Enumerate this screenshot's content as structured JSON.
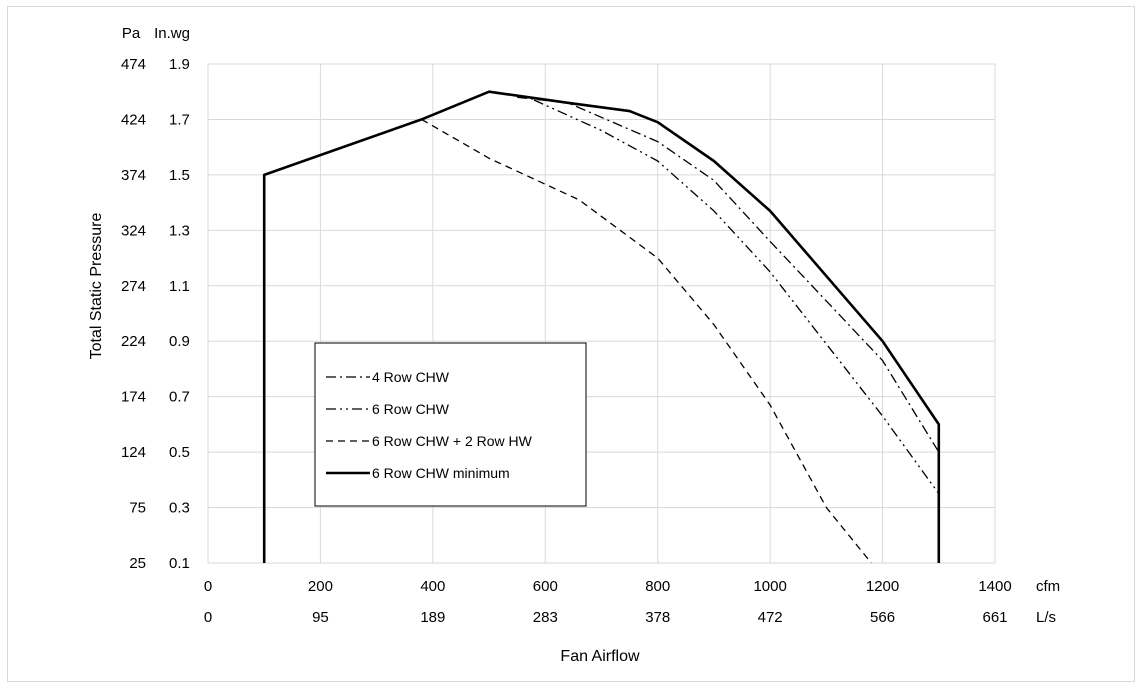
{
  "chart_data": {
    "type": "line",
    "title": "",
    "xlabel": "Fan Airflow",
    "ylabel": "Total Static Pressure",
    "xlim": [
      0,
      1400
    ],
    "ylim": [
      0.1,
      1.9
    ],
    "grid": true,
    "x_unit_primary": "cfm",
    "x_unit_secondary": "L/s",
    "x_ticks_primary": [
      "0",
      "200",
      "400",
      "600",
      "800",
      "1000",
      "1200",
      "1400"
    ],
    "x_ticks_secondary": [
      "0",
      "95",
      "189",
      "283",
      "378",
      "472",
      "566",
      "661"
    ],
    "y_unit_primary": "In.wg",
    "y_unit_secondary": "Pa",
    "y_ticks_primary": [
      "0.1",
      "0.3",
      "0.5",
      "0.7",
      "0.9",
      "1.1",
      "1.3",
      "1.5",
      "1.7",
      "1.9"
    ],
    "y_ticks_secondary": [
      "25",
      "75",
      "124",
      "174",
      "224",
      "274",
      "324",
      "374",
      "424",
      "474"
    ],
    "legend_position": "lower-left",
    "series": [
      {
        "name": "4 Row CHW",
        "dash": "dashdot",
        "x": [
          550,
          640,
          800,
          900,
          1000,
          1200,
          1300
        ],
        "y": [
          1.78,
          1.76,
          1.62,
          1.48,
          1.26,
          0.83,
          0.5
        ]
      },
      {
        "name": "6 Row CHW",
        "dash": "dashdotdot",
        "x": [
          580,
          700,
          800,
          900,
          1000,
          1200,
          1300
        ],
        "y": [
          1.77,
          1.66,
          1.55,
          1.37,
          1.15,
          0.63,
          0.35
        ]
      },
      {
        "name": "6 Row CHW + 2 Row HW",
        "dash": "dashed",
        "x": [
          380,
          500,
          660,
          800,
          900,
          1000,
          1100,
          1180
        ],
        "y": [
          1.7,
          1.56,
          1.41,
          1.2,
          0.96,
          0.67,
          0.3,
          0.1
        ]
      },
      {
        "name": "6 Row CHW minimum",
        "dash": "solid",
        "x": [
          100,
          100,
          380,
          500,
          640,
          750,
          800,
          900,
          1000,
          1200,
          1300,
          1300
        ],
        "y": [
          0.1,
          1.5,
          1.7,
          1.8,
          1.76,
          1.73,
          1.69,
          1.55,
          1.37,
          0.9,
          0.6,
          0.1
        ]
      }
    ]
  }
}
